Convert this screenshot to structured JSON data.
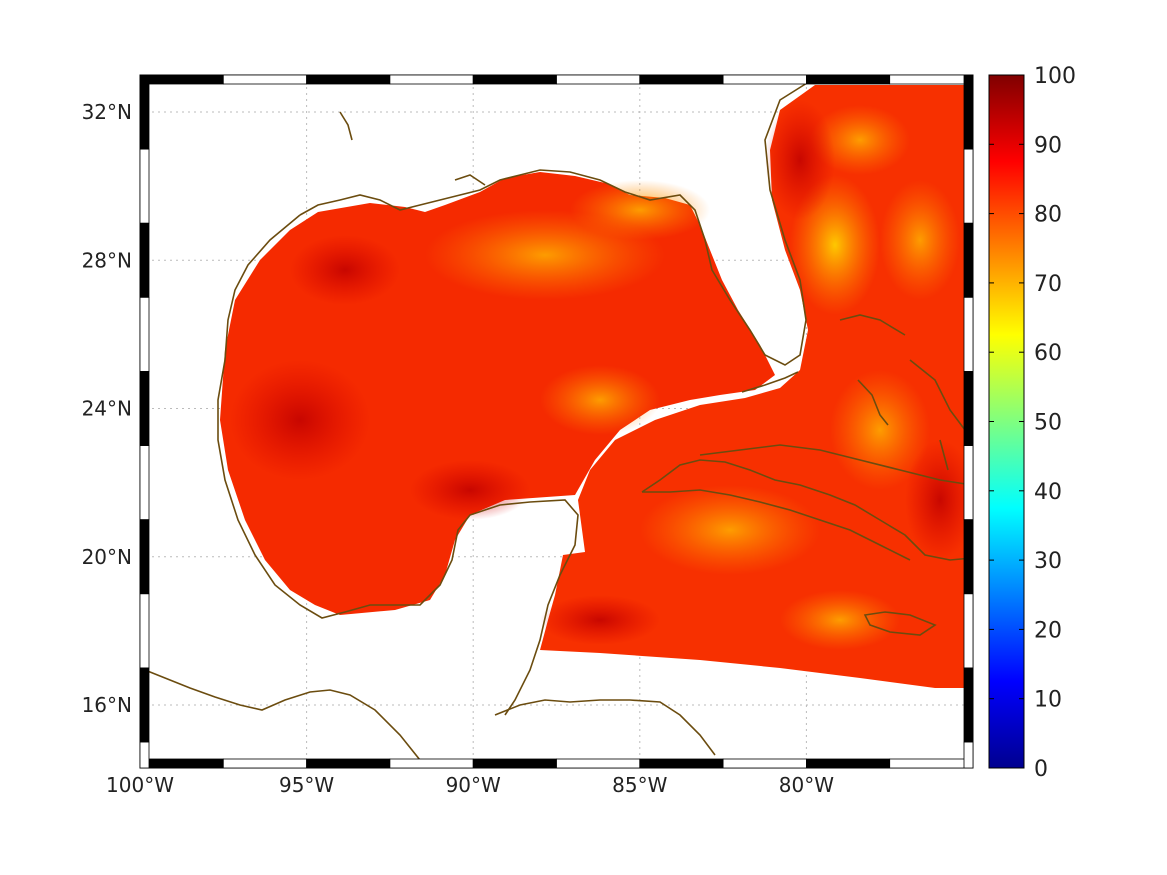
{
  "map": {
    "x_ticks": [
      "100°W",
      "95°W",
      "90°W",
      "85°W",
      "80°W"
    ],
    "y_ticks": [
      "32°N",
      "28°N",
      "24°N",
      "20°N",
      "16°N"
    ],
    "lon_range": [
      -100,
      -75
    ],
    "lat_range": [
      14.3,
      33
    ],
    "gridlines": true,
    "coastline_color": "#6b4c0f",
    "frame_style": "alternating black-white border"
  },
  "colorbar": {
    "ticks": [
      "100",
      "90",
      "80",
      "70",
      "60",
      "50",
      "40",
      "30",
      "20",
      "10",
      "0"
    ],
    "range": [
      0,
      100
    ],
    "colormap": "jet"
  },
  "chart_data": {
    "type": "heatmap",
    "title": "",
    "xlabel": "",
    "ylabel": "",
    "x_ticks": [
      "100°W",
      "95°W",
      "90°W",
      "85°W",
      "80°W"
    ],
    "y_ticks": [
      "32°N",
      "28°N",
      "24°N",
      "20°N",
      "16°N"
    ],
    "colorbar_range": [
      0,
      100
    ],
    "typical_value_range": [
      70,
      97
    ],
    "grid": true,
    "legend": "colorbar-right"
  }
}
